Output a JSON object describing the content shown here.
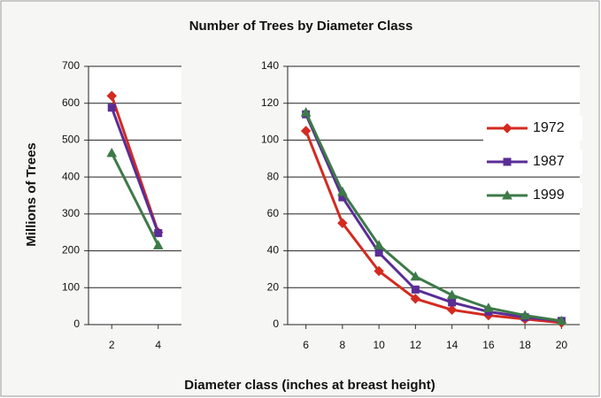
{
  "title": "Number of Trees by Diameter Class",
  "xlabel": "Diameter class (inches at breast height)",
  "ylabel": "Millions of Trees",
  "chart_data": [
    {
      "type": "line",
      "x": [
        2,
        4
      ],
      "xlim": [
        1,
        5
      ],
      "xticks": [
        2,
        4
      ],
      "ylim": [
        0,
        700
      ],
      "yticks": [
        0,
        100,
        200,
        300,
        400,
        500,
        600,
        700
      ],
      "grid": true,
      "series": [
        {
          "name": "1972",
          "color": "#d42a20",
          "marker": "diamond",
          "values": [
            620,
            250
          ]
        },
        {
          "name": "1987",
          "color": "#5a2d96",
          "marker": "square",
          "values": [
            588,
            248
          ]
        },
        {
          "name": "1999",
          "color": "#3d7a48",
          "marker": "triangle",
          "values": [
            465,
            215
          ]
        }
      ]
    },
    {
      "type": "line",
      "x": [
        6,
        8,
        10,
        12,
        14,
        16,
        18,
        20
      ],
      "xlim": [
        5,
        21
      ],
      "xticks": [
        6,
        8,
        10,
        12,
        14,
        16,
        18,
        20
      ],
      "ylim": [
        0,
        140
      ],
      "yticks": [
        0,
        20,
        40,
        60,
        80,
        100,
        120,
        140
      ],
      "grid": true,
      "legend": "right",
      "series": [
        {
          "name": "1972",
          "color": "#d42a20",
          "marker": "diamond",
          "values": [
            105,
            55,
            29,
            14,
            8,
            5,
            3,
            1
          ]
        },
        {
          "name": "1987",
          "color": "#5a2d96",
          "marker": "square",
          "values": [
            114,
            69,
            39,
            19,
            12,
            7,
            4,
            2
          ]
        },
        {
          "name": "1999",
          "color": "#3d7a48",
          "marker": "triangle",
          "values": [
            115,
            72,
            43,
            26,
            16,
            9,
            5,
            2
          ]
        }
      ]
    }
  ]
}
